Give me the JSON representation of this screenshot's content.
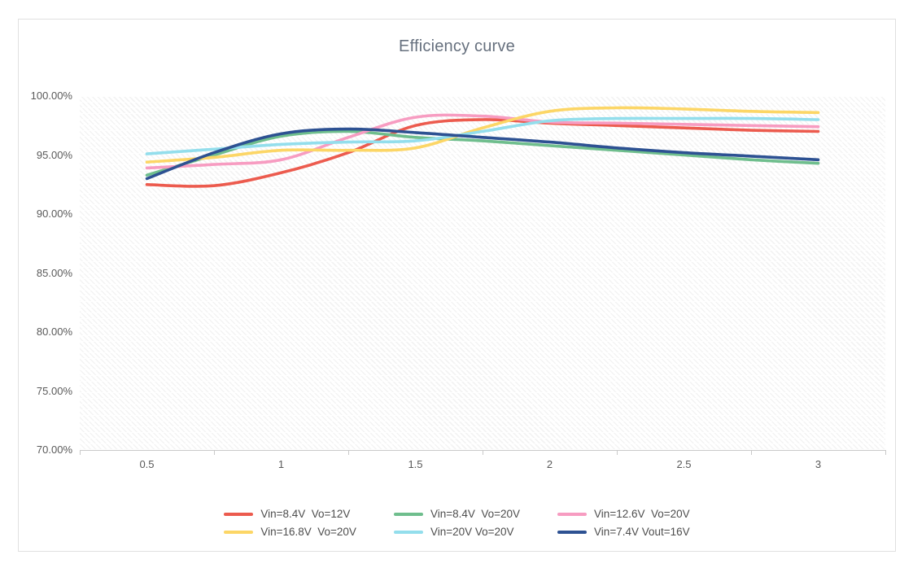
{
  "chart": {
    "border_color": "#e0e0e0",
    "axis_color": "#c9c9c9",
    "tick_label_color": "#595959",
    "title_color": "#66707e",
    "legend_text_color": "#4d4d4d",
    "plot_hatch": "faint diagonal hatch pattern"
  },
  "chart_data": {
    "type": "line",
    "title": "Efficiency curve",
    "xlabel": "",
    "ylabel": "",
    "ylim": [
      70,
      100
    ],
    "y_tick_step": 5,
    "y_tick_labels": [
      "100.00%",
      "95.00%",
      "90.00%",
      "85.00%",
      "80.00%",
      "75.00%",
      "70.00%"
    ],
    "x_tick_labels": [
      "0.5",
      "1",
      "1.5",
      "2",
      "2.5",
      "3"
    ],
    "x_categories": [
      0.5,
      1,
      1.5,
      2,
      2.5,
      3
    ],
    "grid": "off",
    "legend_position": "bottom",
    "line_style": "smoothed",
    "x": [
      0.5,
      0.75,
      1.0,
      1.25,
      1.5,
      1.75,
      2.0,
      2.25,
      2.5,
      2.75,
      3.0
    ],
    "series": [
      {
        "name": "Vin=8.4V  Vo=12V",
        "color": "#ec5b4e",
        "values": [
          92.5,
          92.4,
          93.5,
          95.2,
          97.5,
          98.0,
          97.7,
          97.5,
          97.3,
          97.1,
          97.0
        ]
      },
      {
        "name": "Vin=8.4V  Vo=20V",
        "color": "#6fbe8d",
        "values": [
          93.3,
          95.0,
          96.6,
          97.0,
          96.5,
          96.2,
          95.8,
          95.4,
          95.0,
          94.6,
          94.3
        ]
      },
      {
        "name": "Vin=12.6V  Vo=20V",
        "color": "#f79cc1",
        "values": [
          93.9,
          94.2,
          94.6,
          96.5,
          98.2,
          98.3,
          97.8,
          97.7,
          97.6,
          97.5,
          97.4
        ]
      },
      {
        "name": "Vin=16.8V  Vo=20V",
        "color": "#fcd666",
        "values": [
          94.4,
          94.8,
          95.4,
          95.4,
          95.6,
          97.3,
          98.7,
          99.0,
          98.9,
          98.7,
          98.6
        ]
      },
      {
        "name": "Vin=20V Vo=20V",
        "color": "#93deec",
        "values": [
          95.1,
          95.5,
          95.9,
          96.1,
          96.2,
          97.0,
          97.9,
          98.1,
          98.1,
          98.1,
          98.0
        ]
      },
      {
        "name": "Vin=7.4V Vout=16V",
        "color": "#2d5192",
        "values": [
          93.0,
          95.2,
          96.8,
          97.2,
          96.9,
          96.5,
          96.1,
          95.6,
          95.2,
          94.9,
          94.6
        ]
      }
    ]
  }
}
